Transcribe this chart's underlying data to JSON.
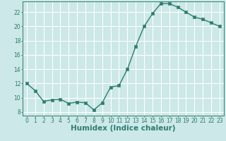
{
  "x": [
    0,
    1,
    2,
    3,
    4,
    5,
    6,
    7,
    8,
    9,
    10,
    11,
    12,
    13,
    14,
    15,
    16,
    17,
    18,
    19,
    20,
    21,
    22,
    23
  ],
  "y": [
    12.0,
    11.0,
    9.5,
    9.7,
    9.8,
    9.2,
    9.4,
    9.3,
    8.3,
    9.3,
    11.5,
    11.7,
    14.0,
    17.2,
    20.0,
    21.8,
    23.2,
    23.2,
    22.7,
    22.0,
    21.3,
    21.0,
    20.5,
    20.0
  ],
  "xlabel": "Humidex (Indice chaleur)",
  "ylim": [
    7.5,
    23.5
  ],
  "xlim": [
    -0.5,
    23.5
  ],
  "yticks": [
    8,
    10,
    12,
    14,
    16,
    18,
    20,
    22
  ],
  "xticks": [
    0,
    1,
    2,
    3,
    4,
    5,
    6,
    7,
    8,
    9,
    10,
    11,
    12,
    13,
    14,
    15,
    16,
    17,
    18,
    19,
    20,
    21,
    22,
    23
  ],
  "line_color": "#2e7d6e",
  "marker_color": "#2e7d6e",
  "bg_color": "#cce8e8",
  "grid_color": "#ffffff",
  "tick_label_fontsize": 5.5,
  "xlabel_fontsize": 7.5,
  "line_width": 1.0,
  "marker_size": 2.5
}
